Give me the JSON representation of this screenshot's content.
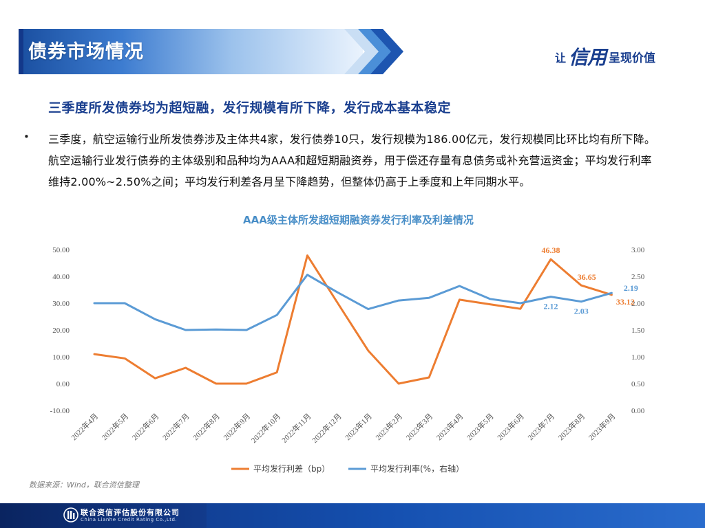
{
  "header": {
    "title": "债券市场情况",
    "slogan_pre": "让",
    "slogan_big": "信用",
    "slogan_post": "呈现价值"
  },
  "subhead": "三季度所发债券均为超短融，发行规模有所下降，发行成本基本稳定",
  "bullet": "•",
  "paragraph": "三季度，航空运输行业所发债券涉及主体共4家，发行债券10只，发行规模为186.00亿元，发行规模同比环比均有所下降。航空运输行业发行债券的主体级别和品种均为AAA和超短期融资券，用于偿还存量有息债务或补充营运资金；平均发行利率维持2.00%~2.50%之间；平均发行利差各月呈下降趋势，但整体仍高于上季度和上年同期水平。",
  "chart_data": {
    "type": "line",
    "title": "AAA级主体所发超短期融资券发行利率及利差情况",
    "categories": [
      "2022年4月",
      "2022年5月",
      "2022年6月",
      "2022年7月",
      "2022年8月",
      "2022年9月",
      "2022年10月",
      "2022年11月",
      "2022年12月",
      "2023年1月",
      "2023年2月",
      "2023年3月",
      "2023年4月",
      "2023年5月",
      "2023年6月",
      "2023年7月",
      "2023年8月",
      "2023年9月"
    ],
    "y_left": {
      "min": -10,
      "max": 50,
      "step": 10,
      "ticks": [
        "-10.00",
        "0.00",
        "10.00",
        "20.00",
        "30.00",
        "40.00",
        "50.00"
      ]
    },
    "y_right": {
      "min": 0,
      "max": 3,
      "step": 0.5,
      "ticks": [
        "0.00",
        "0.50",
        "1.00",
        "1.50",
        "2.00",
        "2.50",
        "3.00"
      ]
    },
    "series": [
      {
        "name": "平均发行利差（bp）",
        "axis": "left",
        "color": "#ed7d31",
        "values": [
          11.0,
          9.4,
          2.0,
          5.9,
          0.0,
          0.0,
          4.2,
          47.8,
          30.0,
          12.3,
          0.0,
          2.3,
          31.3,
          29.6,
          27.9,
          46.38,
          36.65,
          33.12
        ]
      },
      {
        "name": "平均发行利率(%，右轴）",
        "axis": "right",
        "color": "#5b9bd5",
        "values": [
          2.0,
          2.0,
          1.7,
          1.5,
          1.51,
          1.5,
          1.78,
          2.53,
          2.2,
          1.89,
          2.05,
          2.1,
          2.32,
          2.08,
          2.0,
          2.12,
          2.03,
          2.19
        ]
      }
    ],
    "data_labels": [
      {
        "series": 0,
        "index": 15,
        "text": "46.38"
      },
      {
        "series": 0,
        "index": 16,
        "text": "36.65"
      },
      {
        "series": 0,
        "index": 17,
        "text": "33.12"
      },
      {
        "series": 1,
        "index": 15,
        "text": "2.12"
      },
      {
        "series": 1,
        "index": 16,
        "text": "2.03"
      },
      {
        "series": 1,
        "index": 17,
        "text": "2.19"
      }
    ],
    "legend_position": "bottom",
    "grid": false
  },
  "source": "数据来源：Wind，联合资信整理",
  "footer": {
    "company_cn": "联合资信评估股份有限公司",
    "company_en": "China Lianhe Credit Rating Co.,Ltd."
  }
}
